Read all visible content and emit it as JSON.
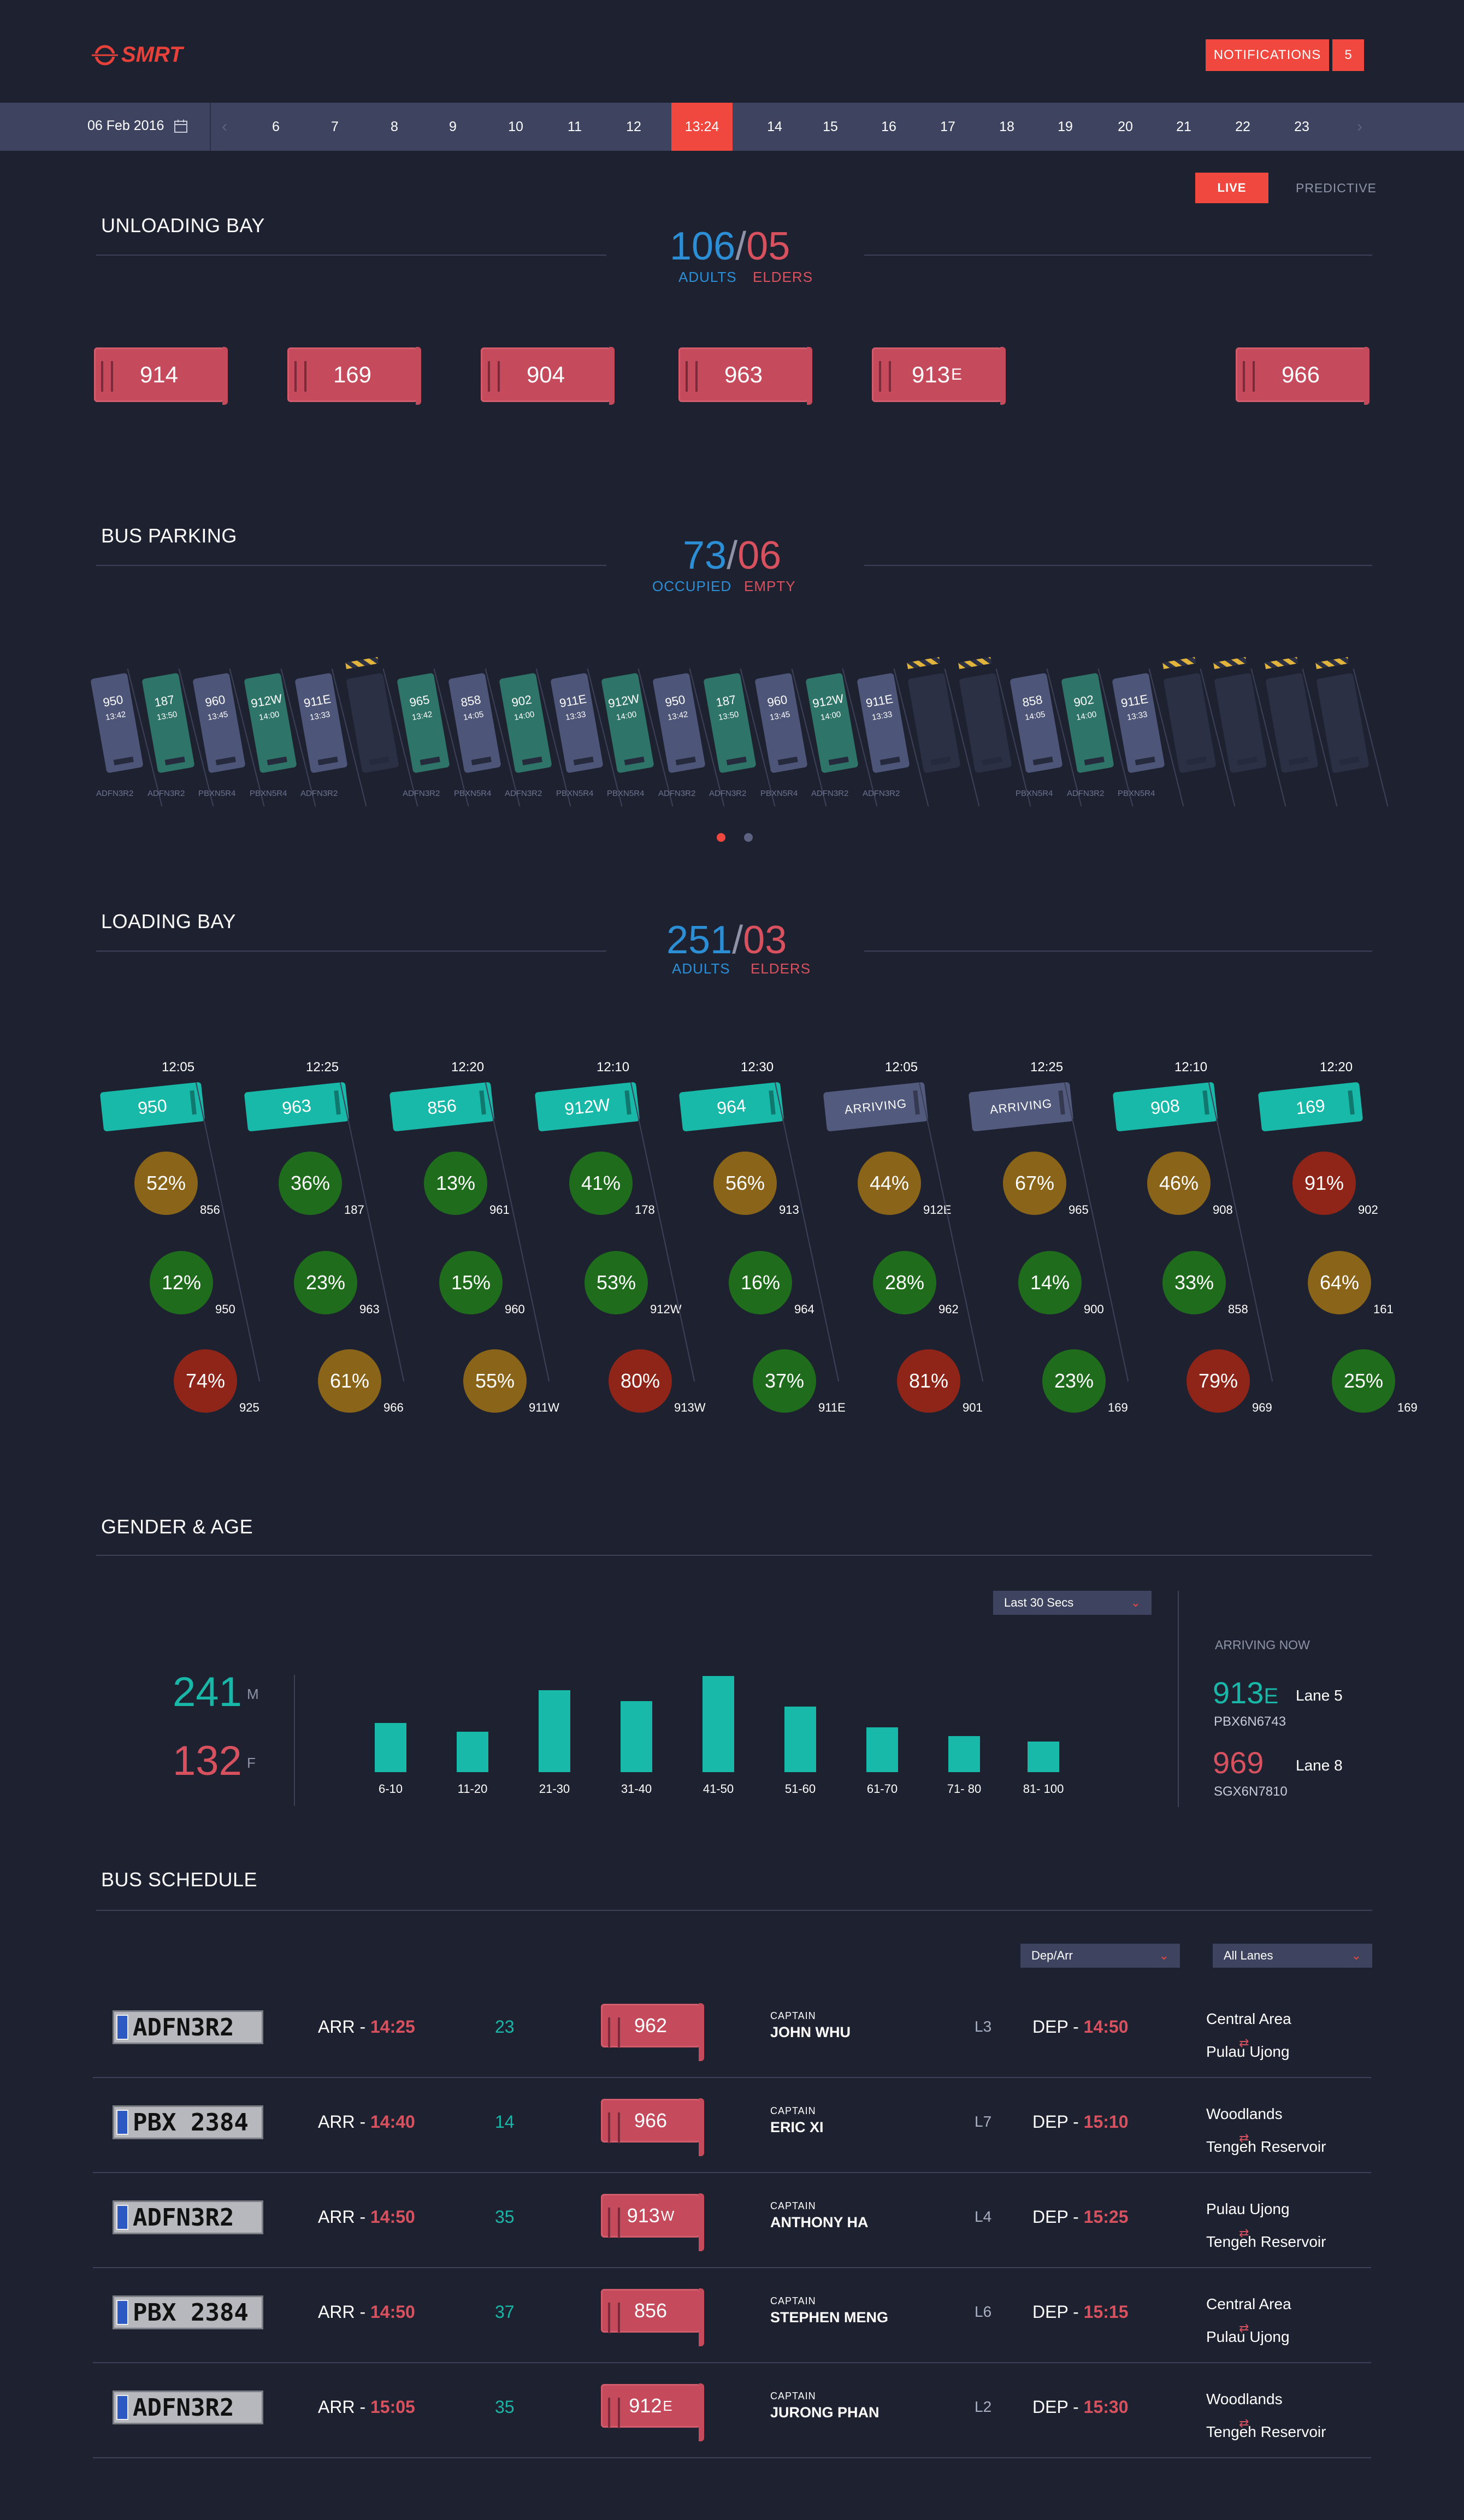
{
  "header": {
    "logo_text": "SMRT",
    "notifications_label": "NOTIFICATIONS",
    "notifications_count": "5"
  },
  "timeline": {
    "date": "06 Feb 2016",
    "prev_arrow": "‹",
    "next_arrow": "›",
    "items": [
      "6",
      "7",
      "8",
      "9",
      "10",
      "11",
      "12",
      "13:24",
      "14",
      "15",
      "16",
      "17",
      "18",
      "19",
      "20",
      "21",
      "22",
      "23"
    ],
    "current": "13:24"
  },
  "mode": {
    "live": "LIVE",
    "predictive": "PREDICTIVE"
  },
  "unloading": {
    "title": "UNLOADING BAY",
    "adults": "106",
    "slash": "/",
    "elders": "05",
    "adults_label": "ADULTS",
    "elders_label": "ELDERS",
    "buses": [
      {
        "num": "914",
        "suffix": ""
      },
      {
        "num": "169",
        "suffix": ""
      },
      {
        "num": "904",
        "suffix": ""
      },
      {
        "num": "963",
        "suffix": ""
      },
      {
        "num": "913",
        "suffix": "E"
      },
      {
        "num": "966",
        "suffix": ""
      }
    ]
  },
  "parking": {
    "title": "BUS PARKING",
    "occupied": "73",
    "slash": "/",
    "empty": "06",
    "occupied_label": "OCCUPIED",
    "empty_label": "EMPTY",
    "slots": [
      {
        "bus": "950",
        "time": "13:42",
        "kind": "occ",
        "plate": "ADFN3R2"
      },
      {
        "bus": "187",
        "time": "13:50",
        "kind": "tealbus",
        "plate": "ADFN3R2"
      },
      {
        "bus": "960",
        "time": "13:45",
        "kind": "occ",
        "plate": "PBXN5R4"
      },
      {
        "bus": "912W",
        "time": "14:00",
        "kind": "tealbus",
        "plate": "PBXN5R4"
      },
      {
        "bus": "911E",
        "time": "13:33",
        "kind": "occ",
        "plate": "ADFN3R2"
      },
      {
        "bus": "",
        "time": "",
        "kind": "empty",
        "plate": ""
      },
      {
        "bus": "965",
        "time": "13:42",
        "kind": "tealbus",
        "plate": "ADFN3R2"
      },
      {
        "bus": "858",
        "time": "14:05",
        "kind": "occ",
        "plate": "PBXN5R4"
      },
      {
        "bus": "902",
        "time": "14:00",
        "kind": "tealbus",
        "plate": "ADFN3R2"
      },
      {
        "bus": "911E",
        "time": "13:33",
        "kind": "occ",
        "plate": "PBXN5R4"
      },
      {
        "bus": "912W",
        "time": "14:00",
        "kind": "tealbus",
        "plate": "PBXN5R4"
      },
      {
        "bus": "950",
        "time": "13:42",
        "kind": "occ",
        "plate": "ADFN3R2"
      },
      {
        "bus": "187",
        "time": "13:50",
        "kind": "tealbus",
        "plate": "ADFN3R2"
      },
      {
        "bus": "960",
        "time": "13:45",
        "kind": "occ",
        "plate": "PBXN5R4"
      },
      {
        "bus": "912W",
        "time": "14:00",
        "kind": "tealbus",
        "plate": "ADFN3R2"
      },
      {
        "bus": "911E",
        "time": "13:33",
        "kind": "occ",
        "plate": "ADFN3R2"
      },
      {
        "bus": "",
        "time": "",
        "kind": "empty",
        "plate": ""
      },
      {
        "bus": "",
        "time": "",
        "kind": "empty",
        "plate": ""
      },
      {
        "bus": "858",
        "time": "14:05",
        "kind": "occ",
        "plate": "PBXN5R4"
      },
      {
        "bus": "902",
        "time": "14:00",
        "kind": "tealbus",
        "plate": "ADFN3R2"
      },
      {
        "bus": "911E",
        "time": "13:33",
        "kind": "occ",
        "plate": "PBXN5R4"
      },
      {
        "bus": "",
        "time": "",
        "kind": "empty",
        "plate": ""
      },
      {
        "bus": "",
        "time": "",
        "kind": "empty",
        "plate": ""
      },
      {
        "bus": "",
        "time": "",
        "kind": "empty",
        "plate": ""
      },
      {
        "bus": "",
        "time": "",
        "kind": "empty",
        "plate": ""
      }
    ]
  },
  "loading": {
    "title": "LOADING BAY",
    "adults": "251",
    "slash": "/",
    "elders": "03",
    "adults_label": "ADULTS",
    "elders_label": "ELDERS",
    "columns": [
      {
        "time": "12:05",
        "bus": "950",
        "arriving": false,
        "circles": [
          {
            "pct": "52%",
            "label": "856",
            "tone": "amber"
          },
          {
            "pct": "12%",
            "label": "950",
            "tone": "green"
          },
          {
            "pct": "74%",
            "label": "925",
            "tone": "red"
          }
        ]
      },
      {
        "time": "12:25",
        "bus": "963",
        "arriving": false,
        "circles": [
          {
            "pct": "36%",
            "label": "187",
            "tone": "green"
          },
          {
            "pct": "23%",
            "label": "963",
            "tone": "green"
          },
          {
            "pct": "61%",
            "label": "966",
            "tone": "amber"
          }
        ]
      },
      {
        "time": "12:20",
        "bus": "856",
        "arriving": false,
        "circles": [
          {
            "pct": "13%",
            "label": "961",
            "tone": "green"
          },
          {
            "pct": "15%",
            "label": "960",
            "tone": "green"
          },
          {
            "pct": "55%",
            "label": "911W",
            "tone": "amber"
          }
        ]
      },
      {
        "time": "12:10",
        "bus": "912W",
        "arriving": false,
        "circles": [
          {
            "pct": "41%",
            "label": "178",
            "tone": "green"
          },
          {
            "pct": "53%",
            "label": "912W",
            "tone": "green"
          },
          {
            "pct": "80%",
            "label": "913W",
            "tone": "red"
          }
        ]
      },
      {
        "time": "12:30",
        "bus": "964",
        "arriving": false,
        "circles": [
          {
            "pct": "56%",
            "label": "913",
            "tone": "amber"
          },
          {
            "pct": "16%",
            "label": "964",
            "tone": "green"
          },
          {
            "pct": "37%",
            "label": "911E",
            "tone": "green"
          }
        ]
      },
      {
        "time": "12:05",
        "bus": "ARRIVING",
        "arriving": true,
        "circles": [
          {
            "pct": "44%",
            "label": "912E",
            "tone": "amber"
          },
          {
            "pct": "28%",
            "label": "962",
            "tone": "green"
          },
          {
            "pct": "81%",
            "label": "901",
            "tone": "red"
          }
        ]
      },
      {
        "time": "12:25",
        "bus": "ARRIVING",
        "arriving": true,
        "circles": [
          {
            "pct": "67%",
            "label": "965",
            "tone": "amber"
          },
          {
            "pct": "14%",
            "label": "900",
            "tone": "green"
          },
          {
            "pct": "23%",
            "label": "169",
            "tone": "green"
          }
        ]
      },
      {
        "time": "12:10",
        "bus": "908",
        "arriving": false,
        "circles": [
          {
            "pct": "46%",
            "label": "908",
            "tone": "amber"
          },
          {
            "pct": "33%",
            "label": "858",
            "tone": "green"
          },
          {
            "pct": "79%",
            "label": "969",
            "tone": "red"
          }
        ]
      },
      {
        "time": "12:20",
        "bus": "169",
        "arriving": false,
        "circles": [
          {
            "pct": "91%",
            "label": "902",
            "tone": "red"
          },
          {
            "pct": "64%",
            "label": "161",
            "tone": "amber"
          },
          {
            "pct": "25%",
            "label": "169",
            "tone": "green"
          }
        ]
      }
    ]
  },
  "gender": {
    "title": "GENDER & AGE",
    "male_count": "241",
    "male_label": "M",
    "female_count": "132",
    "female_label": "F",
    "range_select": "Last 30 Secs",
    "arriving_title": "ARRIVING NOW",
    "arriving": [
      {
        "bus": "913",
        "suffix": "E",
        "lane": "Lane 5",
        "plate": "PBX6N6743",
        "color": "teal"
      },
      {
        "bus": "969",
        "suffix": "",
        "lane": "Lane 8",
        "plate": "SGX6N7810",
        "color": "pink"
      }
    ]
  },
  "chart_data": {
    "type": "bar",
    "title": "",
    "xlabel": "",
    "ylabel": "",
    "categories": [
      "6-10",
      "11-20",
      "21-30",
      "31-40",
      "41-50",
      "51-60",
      "61-70",
      "71- 80",
      "81- 100"
    ],
    "values": [
      45,
      37,
      75,
      65,
      88,
      60,
      41,
      33,
      28
    ],
    "ylim": [
      0,
      100
    ]
  },
  "schedule": {
    "title": "BUS SCHEDULE",
    "filter_direction": "Dep/Arr",
    "filter_lanes": "All Lanes",
    "rows": [
      {
        "plate": "ADFN3R2",
        "arr_label": "ARR - ",
        "arr_time": "14:25",
        "count": "23",
        "bus": "962",
        "suffix": "",
        "captain_label": "CAPTAIN",
        "captain": "JOHN WHU",
        "lane": "L3",
        "dep_label": "DEP - ",
        "dep_time": "14:50",
        "from": "Central Area",
        "to": "Pulau Ujong"
      },
      {
        "plate": "PBX 2384",
        "arr_label": "ARR - ",
        "arr_time": "14:40",
        "count": "14",
        "bus": "966",
        "suffix": "",
        "captain_label": "CAPTAIN",
        "captain": "ERIC XI",
        "lane": "L7",
        "dep_label": "DEP - ",
        "dep_time": "15:10",
        "from": "Woodlands",
        "to": "Tengeh Reservoir"
      },
      {
        "plate": "ADFN3R2",
        "arr_label": "ARR - ",
        "arr_time": "14:50",
        "count": "35",
        "bus": "913",
        "suffix": "W",
        "captain_label": "CAPTAIN",
        "captain": "ANTHONY HA",
        "lane": "L4",
        "dep_label": "DEP - ",
        "dep_time": "15:25",
        "from": "Pulau Ujong",
        "to": "Tengeh Reservoir"
      },
      {
        "plate": "PBX 2384",
        "arr_label": "ARR - ",
        "arr_time": "14:50",
        "count": "37",
        "bus": "856",
        "suffix": "",
        "captain_label": "CAPTAIN",
        "captain": "STEPHEN MENG",
        "lane": "L6",
        "dep_label": "DEP - ",
        "dep_time": "15:15",
        "from": "Central Area",
        "to": "Pulau Ujong"
      },
      {
        "plate": "ADFN3R2",
        "arr_label": "ARR - ",
        "arr_time": "15:05",
        "count": "35",
        "bus": "912",
        "suffix": "E",
        "captain_label": "CAPTAIN",
        "captain": "JURONG PHAN",
        "lane": "L2",
        "dep_label": "DEP - ",
        "dep_time": "15:30",
        "from": "Woodlands",
        "to": "Tengeh Reservoir"
      }
    ]
  },
  "pager": {
    "pages": 2,
    "active": 0
  },
  "colors": {
    "accent": "#f0473e",
    "blue": "#2c8fd6",
    "pink": "#d8515f",
    "teal": "#19b9a9",
    "bg": "#1e2230"
  }
}
